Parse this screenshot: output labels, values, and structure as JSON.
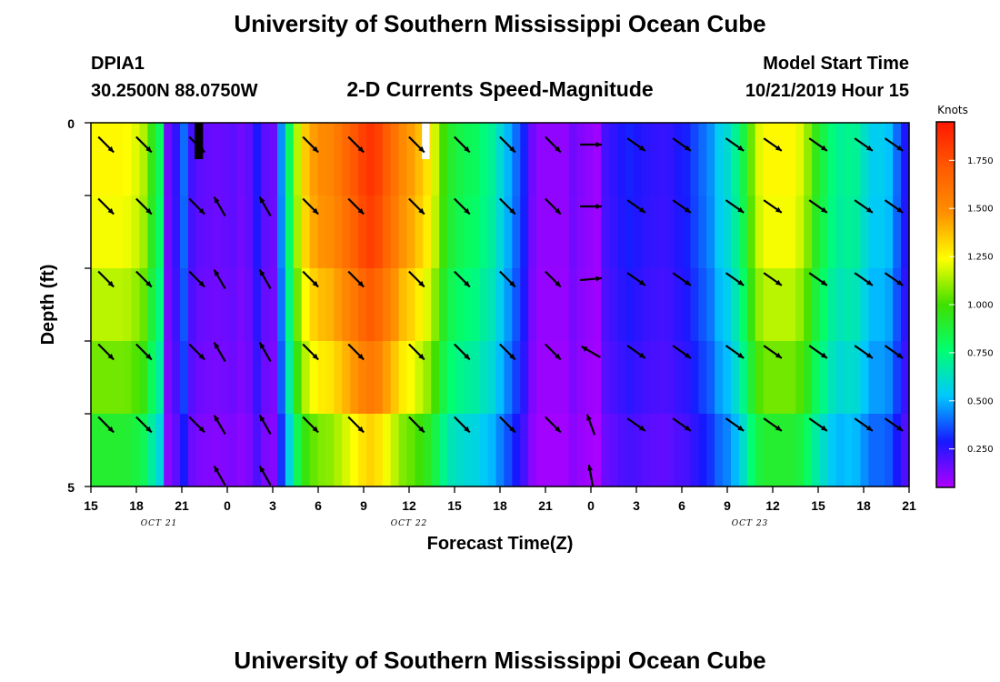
{
  "header": {
    "title": "University of Southern Mississippi Ocean Cube",
    "footer_title": "University of Southern Mississippi Ocean Cube",
    "station_id": "DPIA1",
    "station_coords": "30.2500N 88.0750W",
    "plot_subtitle": "2-D Currents Speed-Magnitude",
    "model_start_label": "Model Start Time",
    "model_start_value": "10/21/2019 Hour 15"
  },
  "chart_data": {
    "type": "heatmap",
    "title": "2-D Currents Speed-Magnitude",
    "xlabel": "Forecast Time(Z)",
    "ylabel": "Depth (ft)",
    "ylim": [
      0,
      5
    ],
    "x_hours_range": [
      0,
      54
    ],
    "x_tick_labels": [
      "15",
      "18",
      "21",
      "0",
      "3",
      "6",
      "9",
      "12",
      "15",
      "18",
      "21",
      "0",
      "3",
      "6",
      "9",
      "12",
      "15",
      "18",
      "21"
    ],
    "y_tick_labels": [
      "0",
      "5"
    ],
    "date_labels": [
      {
        "text": "OCT  21",
        "hour": 4.5
      },
      {
        "text": "OCT  22",
        "hour": 21
      },
      {
        "text": "OCT  23",
        "hour": 43.5
      }
    ],
    "depth_layers": [
      0.5,
      1.5,
      2.5,
      3.5,
      4.5
    ],
    "speed_base_knots": [
      1.25,
      1.25,
      1.25,
      1.25,
      1.24,
      1.2,
      1.14,
      0.95,
      0.8,
      0.15,
      0.25,
      0.4,
      0.22,
      0.18,
      0.17,
      0.16,
      0.17,
      0.18,
      0.15,
      0.18,
      0.28,
      0.18,
      0.16,
      0.45,
      0.8,
      1.15,
      1.35,
      1.45,
      1.5,
      1.52,
      1.58,
      1.65,
      1.72,
      1.8,
      1.85,
      1.8,
      1.7,
      1.6,
      1.5,
      1.45,
      1.38,
      1.3,
      1.18,
      1.0,
      0.9,
      0.85,
      0.82,
      0.8,
      0.75,
      0.7,
      0.6,
      0.5,
      0.4,
      0.3,
      0.15,
      0.1,
      0.1,
      0.1,
      0.1,
      0.15,
      0.12,
      0.1,
      0.08,
      0.22,
      0.25,
      0.28,
      0.3,
      0.28,
      0.26,
      0.25,
      0.24,
      0.25,
      0.28,
      0.3,
      0.35,
      0.4,
      0.45,
      0.55,
      0.6,
      0.7,
      0.85,
      1.05,
      1.2,
      1.25,
      1.25,
      1.25,
      1.25,
      1.2,
      1.1,
      0.95,
      0.85,
      0.75,
      0.7,
      0.72,
      0.7,
      0.62,
      0.55,
      0.55,
      0.52,
      0.4,
      0.28
    ],
    "depth_factors": [
      1.0,
      0.98,
      0.92,
      0.85,
      0.72
    ],
    "masked_cells": [
      {
        "hour_start": 6.85,
        "hour_end": 7.4,
        "depth_start": 0,
        "depth_end": 0.5,
        "color": "#000000"
      },
      {
        "hour_start": 21.85,
        "hour_end": 22.35,
        "depth_start": 0,
        "depth_end": 0.5,
        "color": "#ffffff"
      }
    ],
    "vectors": {
      "hours": [
        1,
        3.5,
        7,
        8.5,
        11.5,
        14.5,
        17.5,
        21.5,
        24.5,
        27.5,
        30.5,
        33,
        36,
        39,
        42.5,
        45,
        48,
        51,
        53
      ],
      "layer_rows": [
        [
          true,
          true,
          true,
          false,
          false,
          true,
          true,
          true,
          true,
          true,
          true,
          true,
          true,
          true,
          true,
          true,
          true,
          true,
          true
        ],
        [
          true,
          true,
          true,
          true,
          true,
          true,
          true,
          true,
          true,
          true,
          true,
          true,
          true,
          true,
          true,
          true,
          true,
          true,
          true
        ],
        [
          true,
          true,
          true,
          true,
          true,
          true,
          true,
          true,
          true,
          true,
          true,
          true,
          true,
          true,
          true,
          true,
          true,
          true,
          true
        ],
        [
          true,
          true,
          true,
          true,
          true,
          true,
          true,
          true,
          true,
          true,
          true,
          true,
          true,
          true,
          true,
          true,
          true,
          true,
          true
        ],
        [
          true,
          true,
          true,
          true,
          true,
          true,
          true,
          true,
          true,
          true,
          true,
          true,
          true,
          true,
          true,
          true,
          true,
          true,
          true
        ],
        [
          false,
          false,
          false,
          true,
          true,
          false,
          false,
          false,
          false,
          false,
          false,
          true,
          false,
          false,
          false,
          false,
          false,
          false,
          false
        ]
      ],
      "layer_depths": [
        0.3,
        1.15,
        2.15,
        3.15,
        4.15,
        4.85
      ],
      "direction_deg": [
        135,
        135,
        135,
        330,
        330,
        135,
        135,
        135,
        135,
        135,
        135,
        90,
        125,
        125,
        125,
        125,
        125,
        125,
        125
      ]
    },
    "colorbar": {
      "unit": "Knots",
      "range": [
        0.05,
        1.95
      ],
      "tick_values": [
        0.25,
        0.5,
        0.75,
        1.0,
        1.25,
        1.5,
        1.75
      ],
      "tick_labels": [
        "0.250",
        "0.500",
        "0.750",
        "1.000",
        "1.250",
        "1.500",
        "1.750"
      ],
      "colors": [
        "#b000ff",
        "#1818ff",
        "#00c8ff",
        "#00ff70",
        "#40e000",
        "#ffff00",
        "#ff9000",
        "#ff5a00",
        "#ff1800"
      ]
    }
  }
}
